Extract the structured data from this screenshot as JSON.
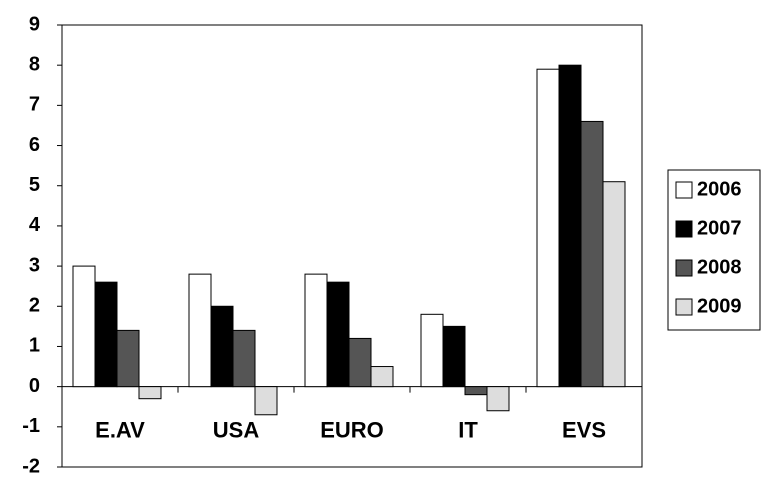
{
  "chart_data": {
    "type": "bar",
    "categories": [
      "E.AV",
      "USA",
      "EURO",
      "IT",
      "EVS"
    ],
    "series": [
      {
        "name": "2006",
        "color": "#ffffff",
        "values": [
          3.0,
          2.8,
          2.8,
          1.8,
          7.9
        ]
      },
      {
        "name": "2007",
        "color": "#000000",
        "values": [
          2.6,
          2.0,
          2.6,
          1.5,
          8.0
        ]
      },
      {
        "name": "2008",
        "color": "#555555",
        "values": [
          1.4,
          1.4,
          1.2,
          -0.2,
          6.6
        ]
      },
      {
        "name": "2009",
        "color": "#dddddd",
        "values": [
          -0.3,
          -0.7,
          0.5,
          -0.6,
          5.1
        ]
      }
    ],
    "ylim": [
      -2,
      9
    ],
    "yticks": [
      -2,
      -1,
      0,
      1,
      2,
      3,
      4,
      5,
      6,
      7,
      8,
      9
    ],
    "grid": false,
    "legend": "right"
  }
}
